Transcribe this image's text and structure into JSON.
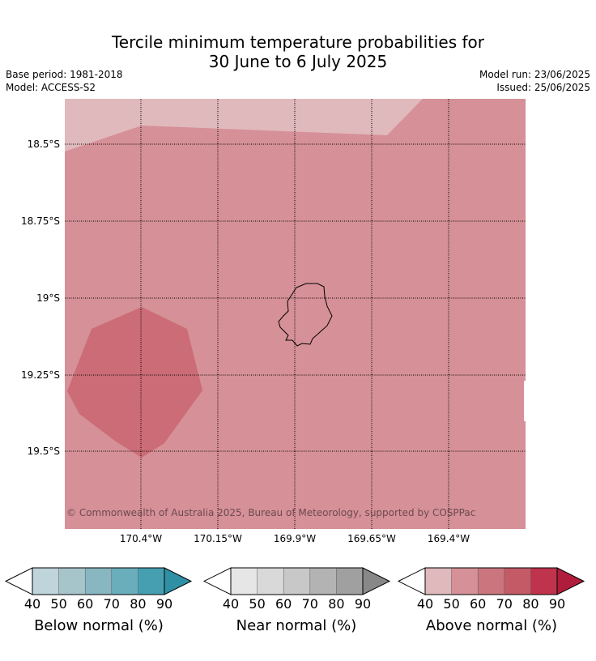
{
  "header": {
    "title_line1": "Tercile minimum temperature probabilities for",
    "title_line2": "30 June to 6 July 2025",
    "base_period": "Base period: 1981-2018",
    "model": "Model: ACCESS-S2",
    "model_run": "Model run: 23/06/2025",
    "issued": "Issued: 25/06/2025"
  },
  "map": {
    "lat_labels": [
      "18.5°S",
      "18.75°S",
      "19°S",
      "19.25°S",
      "19.5°S"
    ],
    "lon_labels": [
      "170.4°W",
      "170.15°W",
      "169.9°W",
      "169.65°W",
      "169.4°W"
    ],
    "copyright": "© Commonwealth of Australia 2025, Bureau of Meteorology, supported by COSPPac",
    "regions": [
      {
        "category": "Above normal",
        "probability_band": "50-60",
        "color": "#d69097"
      },
      {
        "category": "Above normal",
        "probability_band": "40-50",
        "color": "#e0b9bd"
      },
      {
        "category": "Above normal",
        "probability_band": "60-70",
        "color": "#cb6c76"
      }
    ]
  },
  "legends": {
    "ticks": [
      "40",
      "50",
      "60",
      "70",
      "80",
      "90"
    ],
    "below": {
      "label": "Below normal (%)",
      "colors": [
        "#bfd4db",
        "#a6c5cb",
        "#88b6c1",
        "#6aaebc",
        "#469fb1",
        "#2e8fa5"
      ]
    },
    "near": {
      "label": "Near normal (%)",
      "colors": [
        "#e6e6e6",
        "#d9d9d9",
        "#c8c8c8",
        "#b3b3b3",
        "#a0a0a0",
        "#888888"
      ]
    },
    "above": {
      "label": "Above normal (%)",
      "colors": [
        "#e0b9bd",
        "#d69097",
        "#cb767e",
        "#c55a67",
        "#c0334c",
        "#b01d3c"
      ]
    }
  }
}
